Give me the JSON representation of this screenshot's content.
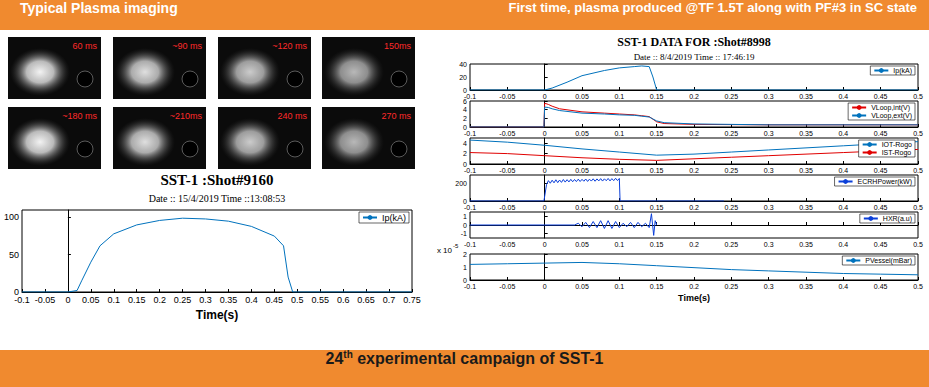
{
  "slide": {
    "header_left": "Typical Plasma imaging",
    "header_right": "First time, plasma  produced @TF 1.5T along with PF#3 in SC state",
    "footer": {
      "main": "24",
      "superscript": "th",
      "rest": " experimental campaign of SST-1"
    },
    "plasma_images": {
      "labels": [
        "60 ms",
        "~90 ms",
        "~120 ms",
        "150ms",
        "~180 ms",
        "~210ms",
        "240 ms",
        "270 ms"
      ]
    }
  },
  "chart_data": [
    {
      "type": "line",
      "title": "SST-1 :Shot#9160",
      "subtitle": "Date :: 15/4/2019 Time ::13:08:53",
      "xlabel": "Time(s)",
      "x": [
        -0.1,
        0,
        0.02,
        0.03,
        0.05,
        0.07,
        0.1,
        0.15,
        0.2,
        0.25,
        0.3,
        0.35,
        0.4,
        0.45,
        0.47,
        0.48,
        0.49,
        0.75
      ],
      "series": [
        {
          "name": "Ip(kA)",
          "color": "#0072bd",
          "values": [
            0,
            0,
            2,
            15,
            40,
            62,
            78,
            90,
            96,
            99,
            98,
            95,
            88,
            75,
            62,
            20,
            0,
            0
          ]
        }
      ],
      "xlim": [
        -0.1,
        0.75
      ],
      "xticks": [
        -0.1,
        -0.05,
        0,
        0.05,
        0.1,
        0.15,
        0.2,
        0.25,
        0.3,
        0.35,
        0.4,
        0.45,
        0.5,
        0.55,
        0.6,
        0.65,
        0.7,
        0.75
      ],
      "ylim": [
        0,
        110
      ],
      "yticks": [
        0,
        50,
        100
      ],
      "grid": false,
      "legend": "upper right"
    },
    {
      "type": "line",
      "title": "SST-1 DATA FOR :Shot#8998",
      "subtitle": "Date :: 8/4/2019 Time :: 17:46:19",
      "x": [
        -0.1,
        0,
        0.01,
        0.03,
        0.05,
        0.08,
        0.1,
        0.12,
        0.13,
        0.14,
        0.145,
        0.15,
        0.5
      ],
      "series": [
        {
          "name": "Ip(kA)",
          "color": "#0072bd",
          "values": [
            0,
            0,
            3,
            12,
            22,
            30,
            34,
            36,
            37,
            36,
            20,
            0,
            0
          ]
        }
      ],
      "xlim": [
        -0.1,
        0.5
      ],
      "xticks": [
        -0.1,
        -0.05,
        0,
        0.05,
        0.1,
        0.15,
        0.2,
        0.25,
        0.3,
        0.35,
        0.4,
        0.45,
        0.5
      ],
      "ylim": [
        0,
        40
      ],
      "yticks": [
        0,
        20,
        40
      ],
      "grid": false,
      "legend": "upper right"
    },
    {
      "type": "line",
      "x": [
        -0.1,
        -0.001,
        0,
        0.005,
        0.01,
        0.02,
        0.05,
        0.08,
        0.1,
        0.12,
        0.13,
        0.14,
        0.15,
        0.16,
        0.2,
        0.3,
        0.5
      ],
      "series": [
        {
          "name": "VLoop,int(V)",
          "color": "#e00000",
          "values": [
            0,
            0,
            5.5,
            5.2,
            4.8,
            4.2,
            3.5,
            3.2,
            3.0,
            2.8,
            2.6,
            2.4,
            1.2,
            0.8,
            0.6,
            0.5,
            0.5
          ]
        },
        {
          "name": "VLoop,ext(V)",
          "color": "#0072bd",
          "values": [
            0,
            0,
            4.6,
            4.5,
            4.2,
            3.8,
            3.2,
            3.0,
            2.8,
            2.7,
            2.5,
            2.3,
            1.4,
            1.0,
            0.7,
            0.5,
            0.5
          ]
        }
      ],
      "xlim": [
        -0.1,
        0.5
      ],
      "xticks": [
        -0.1,
        -0.05,
        0,
        0.05,
        0.1,
        0.15,
        0.2,
        0.25,
        0.3,
        0.35,
        0.4,
        0.45,
        0.5
      ],
      "ylim": [
        0,
        6
      ],
      "yticks": [
        0,
        2,
        4,
        6
      ],
      "grid": false,
      "legend": "upper right"
    },
    {
      "type": "line",
      "x": [
        -0.1,
        -0.05,
        0,
        0.05,
        0.1,
        0.15,
        0.2,
        0.25,
        0.3,
        0.35,
        0.4,
        0.45,
        0.5
      ],
      "series": [
        {
          "name": "IOT-Rogo",
          "color": "#0072bd",
          "values": [
            4.6,
            4.2,
            3.6,
            2.9,
            2.3,
            1.7,
            1.9,
            2.3,
            2.7,
            3.1,
            3.5,
            3.9,
            4.3
          ]
        },
        {
          "name": "IST-Rogo",
          "color": "#e00000",
          "values": [
            2.2,
            2.0,
            1.6,
            1.2,
            0.9,
            0.7,
            1.0,
            1.3,
            1.6,
            1.9,
            2.2,
            2.5,
            2.8
          ]
        }
      ],
      "xlim": [
        -0.1,
        0.5
      ],
      "xticks": [
        -0.1,
        -0.05,
        0,
        0.05,
        0.1,
        0.15,
        0.2,
        0.25,
        0.3,
        0.35,
        0.4,
        0.45,
        0.5
      ],
      "ylim": [
        0,
        5
      ],
      "yticks": [
        0,
        2,
        4
      ],
      "grid": false,
      "legend": "upper right"
    },
    {
      "type": "line",
      "x": [
        -0.1,
        -0.001,
        0.0025,
        0.005,
        0.0075,
        0.01,
        0.0125,
        0.015,
        0.0175,
        0.02,
        0.0225,
        0.025,
        0.0275,
        0.03,
        0.0325,
        0.035,
        0.0375,
        0.04,
        0.0425,
        0.045,
        0.0475,
        0.05,
        0.0525,
        0.055,
        0.0575,
        0.06,
        0.0625,
        0.065,
        0.0675,
        0.07,
        0.0725,
        0.075,
        0.0775,
        0.08,
        0.0825,
        0.085,
        0.0875,
        0.09,
        0.0925,
        0.095,
        0.0975,
        0.1,
        0.101,
        0.24
      ],
      "series": [
        {
          "name": "ECRHPower(kW)",
          "color": "#0b3fd9",
          "values": [
            0,
            0,
            190,
            235,
            205,
            240,
            210,
            245,
            212,
            242,
            215,
            248,
            218,
            246,
            220,
            250,
            222,
            248,
            224,
            252,
            225,
            250,
            228,
            254,
            226,
            252,
            230,
            256,
            228,
            255,
            232,
            258,
            230,
            256,
            234,
            260,
            232,
            258,
            235,
            262,
            236,
            260,
            0,
            0
          ]
        }
      ],
      "xlim": [
        -0.1,
        0.5
      ],
      "xticks": [
        -0.1,
        -0.05,
        0,
        0.05,
        0.1,
        0.15,
        0.2,
        0.25,
        0.3,
        0.35,
        0.4,
        0.45,
        0.5
      ],
      "ylim": [
        0,
        300
      ],
      "yticks": [
        0,
        200
      ],
      "grid": false,
      "legend": "upper right"
    },
    {
      "type": "line",
      "x": [
        -0.1,
        0.04,
        0.045,
        0.05,
        0.055,
        0.06,
        0.065,
        0.07,
        0.075,
        0.08,
        0.085,
        0.09,
        0.095,
        0.1,
        0.105,
        0.11,
        0.115,
        0.12,
        0.125,
        0.13,
        0.135,
        0.14,
        0.143,
        0.146,
        0.148,
        0.15
      ],
      "series": [
        {
          "name": "HXR(a.u)",
          "color": "#0b3fd9",
          "values": [
            0,
            0,
            0.2,
            -0.2,
            0.3,
            -0.3,
            0.4,
            -0.3,
            0.5,
            -0.4,
            0.5,
            -0.4,
            0.4,
            -0.3,
            0.2,
            -0.2,
            0.3,
            -0.3,
            0.3,
            -0.2,
            0.2,
            -0.3,
            1.3,
            -1.2,
            0.5,
            0
          ]
        }
      ],
      "xlim": [
        -0.1,
        0.5
      ],
      "xticks": [
        -0.1,
        -0.05,
        0,
        0.05,
        0.1,
        0.15,
        0.2,
        0.25,
        0.3,
        0.35,
        0.4,
        0.45,
        0.5
      ],
      "ylim": [
        -1.5,
        1.5
      ],
      "yticks": [
        -1,
        0,
        1
      ],
      "grid": false,
      "legend": "upper right"
    },
    {
      "type": "line",
      "xlabel": "Time(s)",
      "annotations": [
        {
          "text": "x 10",
          "superscript": "-5"
        }
      ],
      "x": [
        -0.1,
        -0.05,
        0,
        0.05,
        0.1,
        0.15,
        0.2,
        0.25,
        0.3,
        0.35,
        0.4,
        0.45,
        0.5
      ],
      "series": [
        {
          "name": "PVessel(mBar)",
          "color": "#0072bd",
          "values": [
            1.2,
            1.25,
            1.3,
            1.35,
            1.25,
            1.1,
            0.95,
            0.8,
            0.7,
            0.6,
            0.5,
            0.45,
            0.4
          ]
        }
      ],
      "xlim": [
        -0.1,
        0.5
      ],
      "xticks": [
        -0.1,
        -0.05,
        0,
        0.05,
        0.1,
        0.15,
        0.2,
        0.25,
        0.3,
        0.35,
        0.4,
        0.45,
        0.5
      ],
      "ylim": [
        0,
        2
      ],
      "yticks": [
        0,
        1,
        2
      ],
      "grid": false,
      "legend": "upper right"
    }
  ]
}
